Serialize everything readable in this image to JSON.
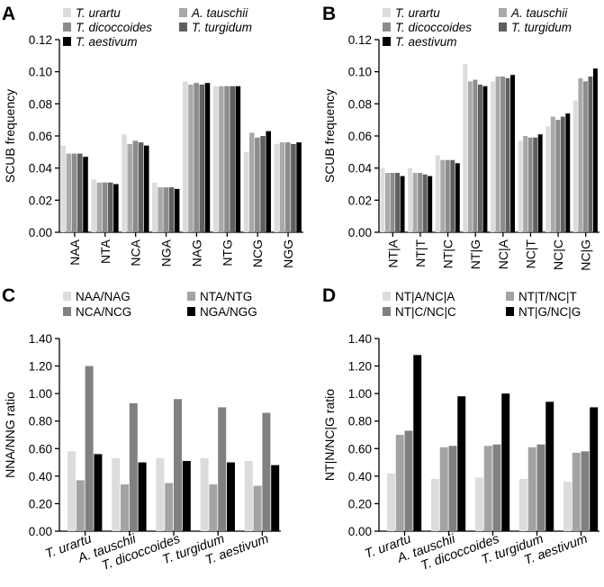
{
  "panel_labels": [
    "A",
    "B",
    "C",
    "D"
  ],
  "colors": {
    "five_series": [
      "#dcdcdc",
      "#a9a9a9",
      "#8c8c8c",
      "#5f5f5f",
      "#000000"
    ],
    "ratio_series": [
      "#dcdcdc",
      "#a3a3a3",
      "#808080",
      "#000000"
    ]
  },
  "chart_data": [
    {
      "panel": "A",
      "type": "bar",
      "ylabel": "SCUB frequency",
      "xlabel": "",
      "ylim": [
        0,
        0.12
      ],
      "yticks": [
        "0.00",
        "0.02",
        "0.04",
        "0.06",
        "0.08",
        "0.10",
        "0.12"
      ],
      "categories": [
        "NAA",
        "NTA",
        "NCA",
        "NGA",
        "NAG",
        "NTG",
        "NCG",
        "NGG"
      ],
      "series": [
        {
          "name": "T. urartu",
          "values": [
            0.054,
            0.033,
            0.061,
            0.031,
            0.094,
            0.091,
            0.05,
            0.055
          ]
        },
        {
          "name": "A. tauschii",
          "values": [
            0.049,
            0.031,
            0.055,
            0.028,
            0.092,
            0.091,
            0.062,
            0.056
          ]
        },
        {
          "name": "T. dicoccoides",
          "values": [
            0.049,
            0.031,
            0.057,
            0.028,
            0.093,
            0.091,
            0.059,
            0.056
          ]
        },
        {
          "name": "T. turgidum",
          "values": [
            0.049,
            0.031,
            0.056,
            0.028,
            0.092,
            0.091,
            0.06,
            0.055
          ]
        },
        {
          "name": "T. aestivum",
          "values": [
            0.047,
            0.03,
            0.054,
            0.027,
            0.093,
            0.091,
            0.063,
            0.056
          ]
        }
      ],
      "legend": [
        "T. urartu",
        "A. tauschii",
        "T. dicoccoides",
        "T. turgidum",
        "T. aestivum"
      ],
      "legend_italic": true,
      "legend_position": "top",
      "grid": false
    },
    {
      "panel": "B",
      "type": "bar",
      "ylabel": "SCUB frequency",
      "xlabel": "",
      "ylim": [
        0,
        0.12
      ],
      "yticks": [
        "0.00",
        "0.02",
        "0.04",
        "0.06",
        "0.08",
        "0.10",
        "0.12"
      ],
      "categories": [
        "NT|A",
        "NT|T",
        "NT|C",
        "NT|G",
        "NC|A",
        "NC|T",
        "NC|C",
        "NC|G"
      ],
      "series": [
        {
          "name": "T. urartu",
          "values": [
            0.04,
            0.04,
            0.048,
            0.105,
            0.094,
            0.057,
            0.066,
            0.082
          ]
        },
        {
          "name": "A. tauschii",
          "values": [
            0.037,
            0.037,
            0.045,
            0.094,
            0.097,
            0.06,
            0.072,
            0.096
          ]
        },
        {
          "name": "T. dicoccoides",
          "values": [
            0.037,
            0.037,
            0.045,
            0.095,
            0.097,
            0.059,
            0.07,
            0.094
          ]
        },
        {
          "name": "T. turgidum",
          "values": [
            0.037,
            0.036,
            0.045,
            0.092,
            0.096,
            0.059,
            0.072,
            0.097
          ]
        },
        {
          "name": "T. aestivum",
          "values": [
            0.035,
            0.035,
            0.043,
            0.091,
            0.098,
            0.061,
            0.074,
            0.102
          ]
        }
      ],
      "legend": [
        "T. urartu",
        "A. tauschii",
        "T. dicoccoides",
        "T. turgidum",
        "T. aestivum"
      ],
      "legend_italic": true,
      "legend_position": "top",
      "grid": false
    },
    {
      "panel": "C",
      "type": "bar",
      "ylabel": "NNA/NNG ratio",
      "xlabel": "",
      "ylim": [
        0,
        1.4
      ],
      "yticks": [
        "0.00",
        "0.20",
        "0.40",
        "0.60",
        "0.80",
        "1.00",
        "1.20",
        "1.40"
      ],
      "categories": [
        "T. urartu",
        "A. tauschii",
        "T. dicoccoides",
        "T. turgidum",
        "T. aestivum"
      ],
      "series": [
        {
          "name": "NAA/NAG",
          "values": [
            0.58,
            0.53,
            0.53,
            0.53,
            0.51
          ]
        },
        {
          "name": "NTA/NTG",
          "values": [
            0.37,
            0.34,
            0.35,
            0.34,
            0.33
          ]
        },
        {
          "name": "NCA/NCG",
          "values": [
            1.2,
            0.93,
            0.96,
            0.9,
            0.86
          ]
        },
        {
          "name": "NGA/NGG",
          "values": [
            0.56,
            0.5,
            0.51,
            0.5,
            0.48
          ]
        }
      ],
      "legend": [
        "NAA/NAG",
        "NTA/NTG",
        "NCA/NCG",
        "NGA/NGG"
      ],
      "legend_italic": false,
      "legend_position": "top",
      "grid": false
    },
    {
      "panel": "D",
      "type": "bar",
      "ylabel": "NT|N/NC|G ratio",
      "xlabel": "",
      "ylim": [
        0,
        1.4
      ],
      "yticks": [
        "0.00",
        "0.20",
        "0.40",
        "0.60",
        "0.80",
        "1.00",
        "1.20",
        "1.40"
      ],
      "categories": [
        "T. urartu",
        "A. tauschii",
        "T. dicoccoides",
        "T. turgidum",
        "T. aestivum"
      ],
      "series": [
        {
          "name": "NT|A/NC|A",
          "values": [
            0.42,
            0.38,
            0.39,
            0.38,
            0.36
          ]
        },
        {
          "name": "NT|T/NC|T",
          "values": [
            0.7,
            0.61,
            0.62,
            0.61,
            0.57
          ]
        },
        {
          "name": "NT|C/NC|C",
          "values": [
            0.73,
            0.62,
            0.63,
            0.63,
            0.58
          ]
        },
        {
          "name": "NT|G/NC|G",
          "values": [
            1.28,
            0.98,
            1.0,
            0.94,
            0.9
          ]
        }
      ],
      "legend": [
        "NT|A/NC|A",
        "NT|T/NC|T",
        "NT|C/NC|C",
        "NT|G/NC|G"
      ],
      "legend_italic": false,
      "legend_position": "top",
      "grid": false
    }
  ]
}
